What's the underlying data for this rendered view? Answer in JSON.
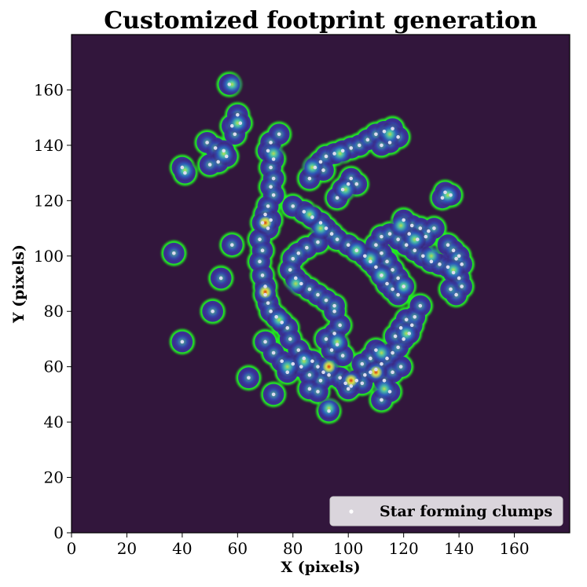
{
  "chart_data": {
    "type": "heatmap",
    "title": "Customized footprint generation",
    "xlabel": "X (pixels)",
    "ylabel": "Y (pixels)",
    "xlim": [
      0,
      180
    ],
    "ylim": [
      0,
      180
    ],
    "xticks": [
      0,
      20,
      40,
      60,
      80,
      100,
      120,
      140,
      160
    ],
    "yticks": [
      0,
      20,
      40,
      60,
      80,
      100,
      120,
      140,
      160
    ],
    "background_color": "#32163c",
    "contour_color": "#22ee22",
    "clump_color": "#dcdcf0",
    "legend": {
      "position": "lower-right",
      "label": "Star forming clumps"
    },
    "series": [
      {
        "name": "Star forming clumps",
        "type": "scatter",
        "points": [
          [
            57,
            162
          ],
          [
            49,
            141
          ],
          [
            52,
            139
          ],
          [
            55,
            138
          ],
          [
            56,
            136
          ],
          [
            53,
            134
          ],
          [
            50,
            133
          ],
          [
            40,
            132
          ],
          [
            41,
            130
          ],
          [
            58,
            147
          ],
          [
            60,
            151
          ],
          [
            61,
            148
          ],
          [
            59,
            144
          ],
          [
            72,
            141
          ],
          [
            71,
            138
          ],
          [
            73,
            135
          ],
          [
            72,
            132
          ],
          [
            75,
            144
          ],
          [
            73,
            128
          ],
          [
            72,
            125
          ],
          [
            73,
            122
          ],
          [
            71,
            118
          ],
          [
            70,
            115
          ],
          [
            69,
            112
          ],
          [
            71,
            110
          ],
          [
            72,
            113
          ],
          [
            68,
            106
          ],
          [
            69,
            102
          ],
          [
            68,
            98
          ],
          [
            69,
            93
          ],
          [
            70,
            89
          ],
          [
            70,
            86
          ],
          [
            71,
            83
          ],
          [
            72,
            80
          ],
          [
            74,
            78
          ],
          [
            76,
            76
          ],
          [
            78,
            74
          ],
          [
            79,
            70
          ],
          [
            82,
            66
          ],
          [
            84,
            63
          ],
          [
            87,
            62
          ],
          [
            89,
            60
          ],
          [
            91,
            58
          ],
          [
            93,
            57
          ],
          [
            90,
            55
          ],
          [
            86,
            57
          ],
          [
            83,
            60
          ],
          [
            86,
            52
          ],
          [
            89,
            51
          ],
          [
            70,
            69
          ],
          [
            73,
            65
          ],
          [
            76,
            62
          ],
          [
            78,
            58
          ],
          [
            80,
            61
          ],
          [
            95,
            72
          ],
          [
            97,
            75
          ],
          [
            96,
            68
          ],
          [
            94,
            66
          ],
          [
            92,
            70
          ],
          [
            98,
            64
          ],
          [
            95,
            80
          ],
          [
            97,
            56
          ],
          [
            99,
            54
          ],
          [
            101,
            53
          ],
          [
            103,
            55
          ],
          [
            106,
            57
          ],
          [
            108,
            58
          ],
          [
            110,
            59
          ],
          [
            112,
            61
          ],
          [
            114,
            63
          ],
          [
            116,
            65
          ],
          [
            118,
            67
          ],
          [
            120,
            70
          ],
          [
            122,
            72
          ],
          [
            123,
            75
          ],
          [
            121,
            77
          ],
          [
            119,
            74
          ],
          [
            117,
            71
          ],
          [
            110,
            66
          ],
          [
            108,
            63
          ],
          [
            105,
            61
          ],
          [
            112,
            48
          ],
          [
            115,
            51
          ],
          [
            113,
            55
          ],
          [
            116,
            58
          ],
          [
            119,
            60
          ],
          [
            124,
            78
          ],
          [
            126,
            82
          ],
          [
            88,
            132
          ],
          [
            90,
            134
          ],
          [
            92,
            136
          ],
          [
            95,
            137
          ],
          [
            98,
            138
          ],
          [
            101,
            139
          ],
          [
            104,
            140
          ],
          [
            107,
            142
          ],
          [
            110,
            144
          ],
          [
            113,
            145
          ],
          [
            116,
            146
          ],
          [
            118,
            143
          ],
          [
            115,
            141
          ],
          [
            112,
            140
          ],
          [
            86,
            128
          ],
          [
            91,
            131
          ],
          [
            96,
            121
          ],
          [
            98,
            124
          ],
          [
            100,
            126
          ],
          [
            101,
            128
          ],
          [
            103,
            126
          ],
          [
            80,
            118
          ],
          [
            84,
            116
          ],
          [
            87,
            114
          ],
          [
            90,
            112
          ],
          [
            92,
            110
          ],
          [
            94,
            108
          ],
          [
            96,
            106
          ],
          [
            89,
            105
          ],
          [
            85,
            103
          ],
          [
            82,
            101
          ],
          [
            80,
            99
          ],
          [
            79,
            95
          ],
          [
            81,
            92
          ],
          [
            83,
            90
          ],
          [
            86,
            88
          ],
          [
            89,
            86
          ],
          [
            92,
            84
          ],
          [
            95,
            82
          ],
          [
            100,
            104
          ],
          [
            103,
            102
          ],
          [
            106,
            100
          ],
          [
            108,
            98
          ],
          [
            110,
            96
          ],
          [
            112,
            93
          ],
          [
            114,
            90
          ],
          [
            116,
            88
          ],
          [
            118,
            86
          ],
          [
            120,
            89
          ],
          [
            118,
            92
          ],
          [
            116,
            95
          ],
          [
            114,
            98
          ],
          [
            112,
            101
          ],
          [
            110,
            104
          ],
          [
            112,
            107
          ],
          [
            115,
            108
          ],
          [
            118,
            106
          ],
          [
            121,
            104
          ],
          [
            124,
            102
          ],
          [
            127,
            100
          ],
          [
            130,
            98
          ],
          [
            133,
            97
          ],
          [
            136,
            96
          ],
          [
            138,
            94
          ],
          [
            140,
            92
          ],
          [
            141,
            89
          ],
          [
            139,
            86
          ],
          [
            137,
            88
          ],
          [
            120,
            113
          ],
          [
            123,
            111
          ],
          [
            126,
            110
          ],
          [
            129,
            109
          ],
          [
            131,
            110
          ],
          [
            128,
            107
          ],
          [
            125,
            106
          ],
          [
            122,
            108
          ],
          [
            135,
            123
          ],
          [
            137,
            122
          ],
          [
            134,
            121
          ],
          [
            136,
            104
          ],
          [
            138,
            102
          ],
          [
            140,
            100
          ],
          [
            141,
            97
          ],
          [
            139,
            99
          ],
          [
            37,
            101
          ],
          [
            58,
            104
          ],
          [
            54,
            92
          ],
          [
            51,
            80
          ],
          [
            40,
            69
          ],
          [
            64,
            56
          ],
          [
            73,
            50
          ],
          [
            93,
            44
          ],
          [
            100,
            52
          ],
          [
            105,
            54
          ]
        ]
      }
    ],
    "density_peaks": [
      [
        70,
        112
      ],
      [
        70,
        87
      ],
      [
        90,
        110
      ],
      [
        93,
        60
      ],
      [
        101,
        55
      ],
      [
        110,
        58
      ],
      [
        112,
        65
      ],
      [
        121,
        72
      ],
      [
        84,
        62
      ],
      [
        73,
        137
      ],
      [
        55,
        137
      ],
      [
        97,
        137
      ],
      [
        115,
        144
      ],
      [
        120,
        89
      ],
      [
        138,
        95
      ],
      [
        124,
        106
      ],
      [
        96,
        69
      ],
      [
        81,
        90
      ],
      [
        108,
        99
      ],
      [
        75,
        77
      ],
      [
        130,
        100
      ],
      [
        87,
        132
      ],
      [
        99,
        124
      ],
      [
        78,
        60
      ],
      [
        112,
        93
      ],
      [
        103,
        102
      ],
      [
        86,
        115
      ],
      [
        136,
        122
      ],
      [
        41,
        131
      ],
      [
        58,
        162
      ],
      [
        113,
        52
      ],
      [
        93,
        45
      ],
      [
        60,
        148
      ],
      [
        119,
        111
      ]
    ],
    "hot_spots": [
      [
        70,
        112
      ],
      [
        70,
        87
      ],
      [
        93,
        60
      ],
      [
        101,
        55
      ],
      [
        110,
        58
      ]
    ]
  }
}
